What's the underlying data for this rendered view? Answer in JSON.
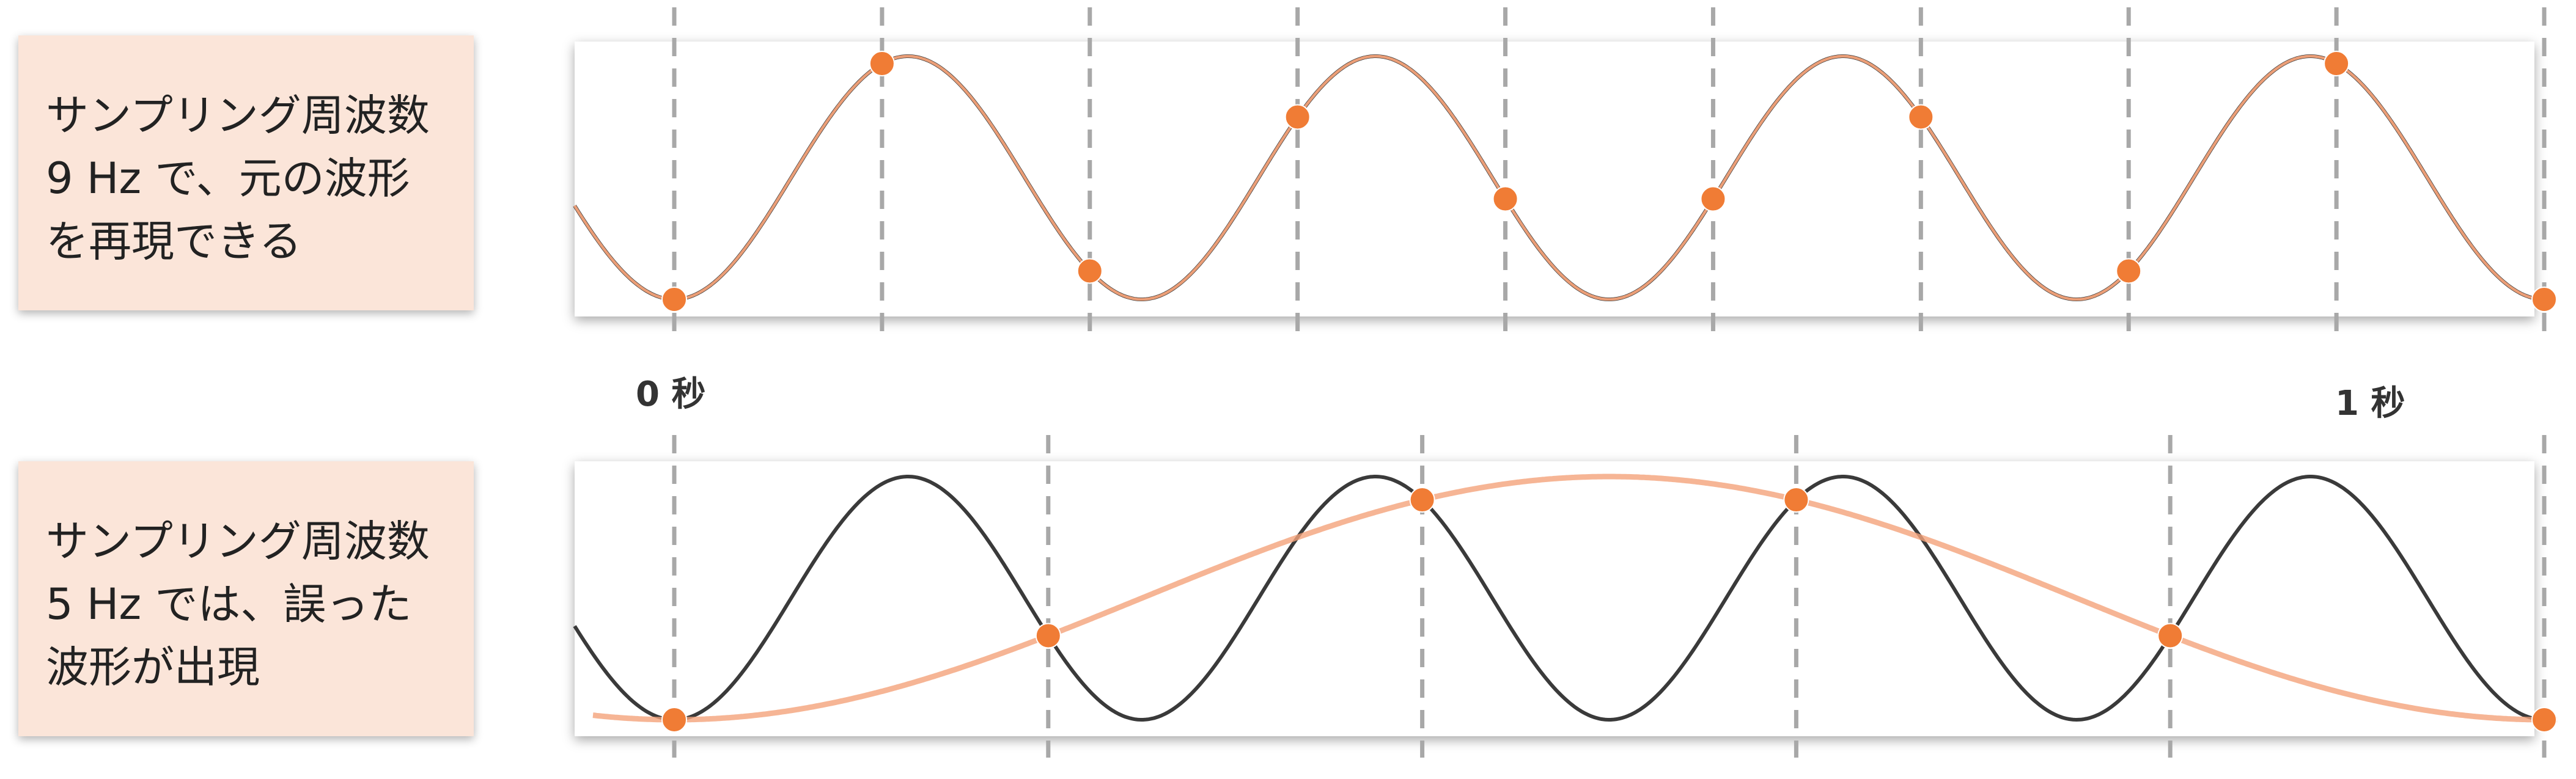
{
  "panels": [
    {
      "caption_lines": [
        "サンプリング周波数",
        "9 Hz で、元の波形",
        "を再現できる"
      ],
      "sampling_rate_hz": 9,
      "reconstructed_frequency_hz": 4,
      "outcome": "faithful reconstruction"
    },
    {
      "caption_lines": [
        "サンプリング周波数",
        "5 Hz では、誤った",
        "波形が出現"
      ],
      "sampling_rate_hz": 5,
      "reconstructed_frequency_hz": 1,
      "outcome": "aliasing"
    }
  ],
  "time_labels": {
    "start": "0 秒",
    "end": "1 秒"
  },
  "signal": {
    "frequency_hz": 4,
    "phase": "minimum at t = 0"
  },
  "colors": {
    "caption_background": "#fbe5d9",
    "original_wave": "#3a3a3a",
    "reconstructed_wave": "#f4a37a",
    "sample_point": "#f07c35",
    "sample_line": "#a8a8a8"
  }
}
